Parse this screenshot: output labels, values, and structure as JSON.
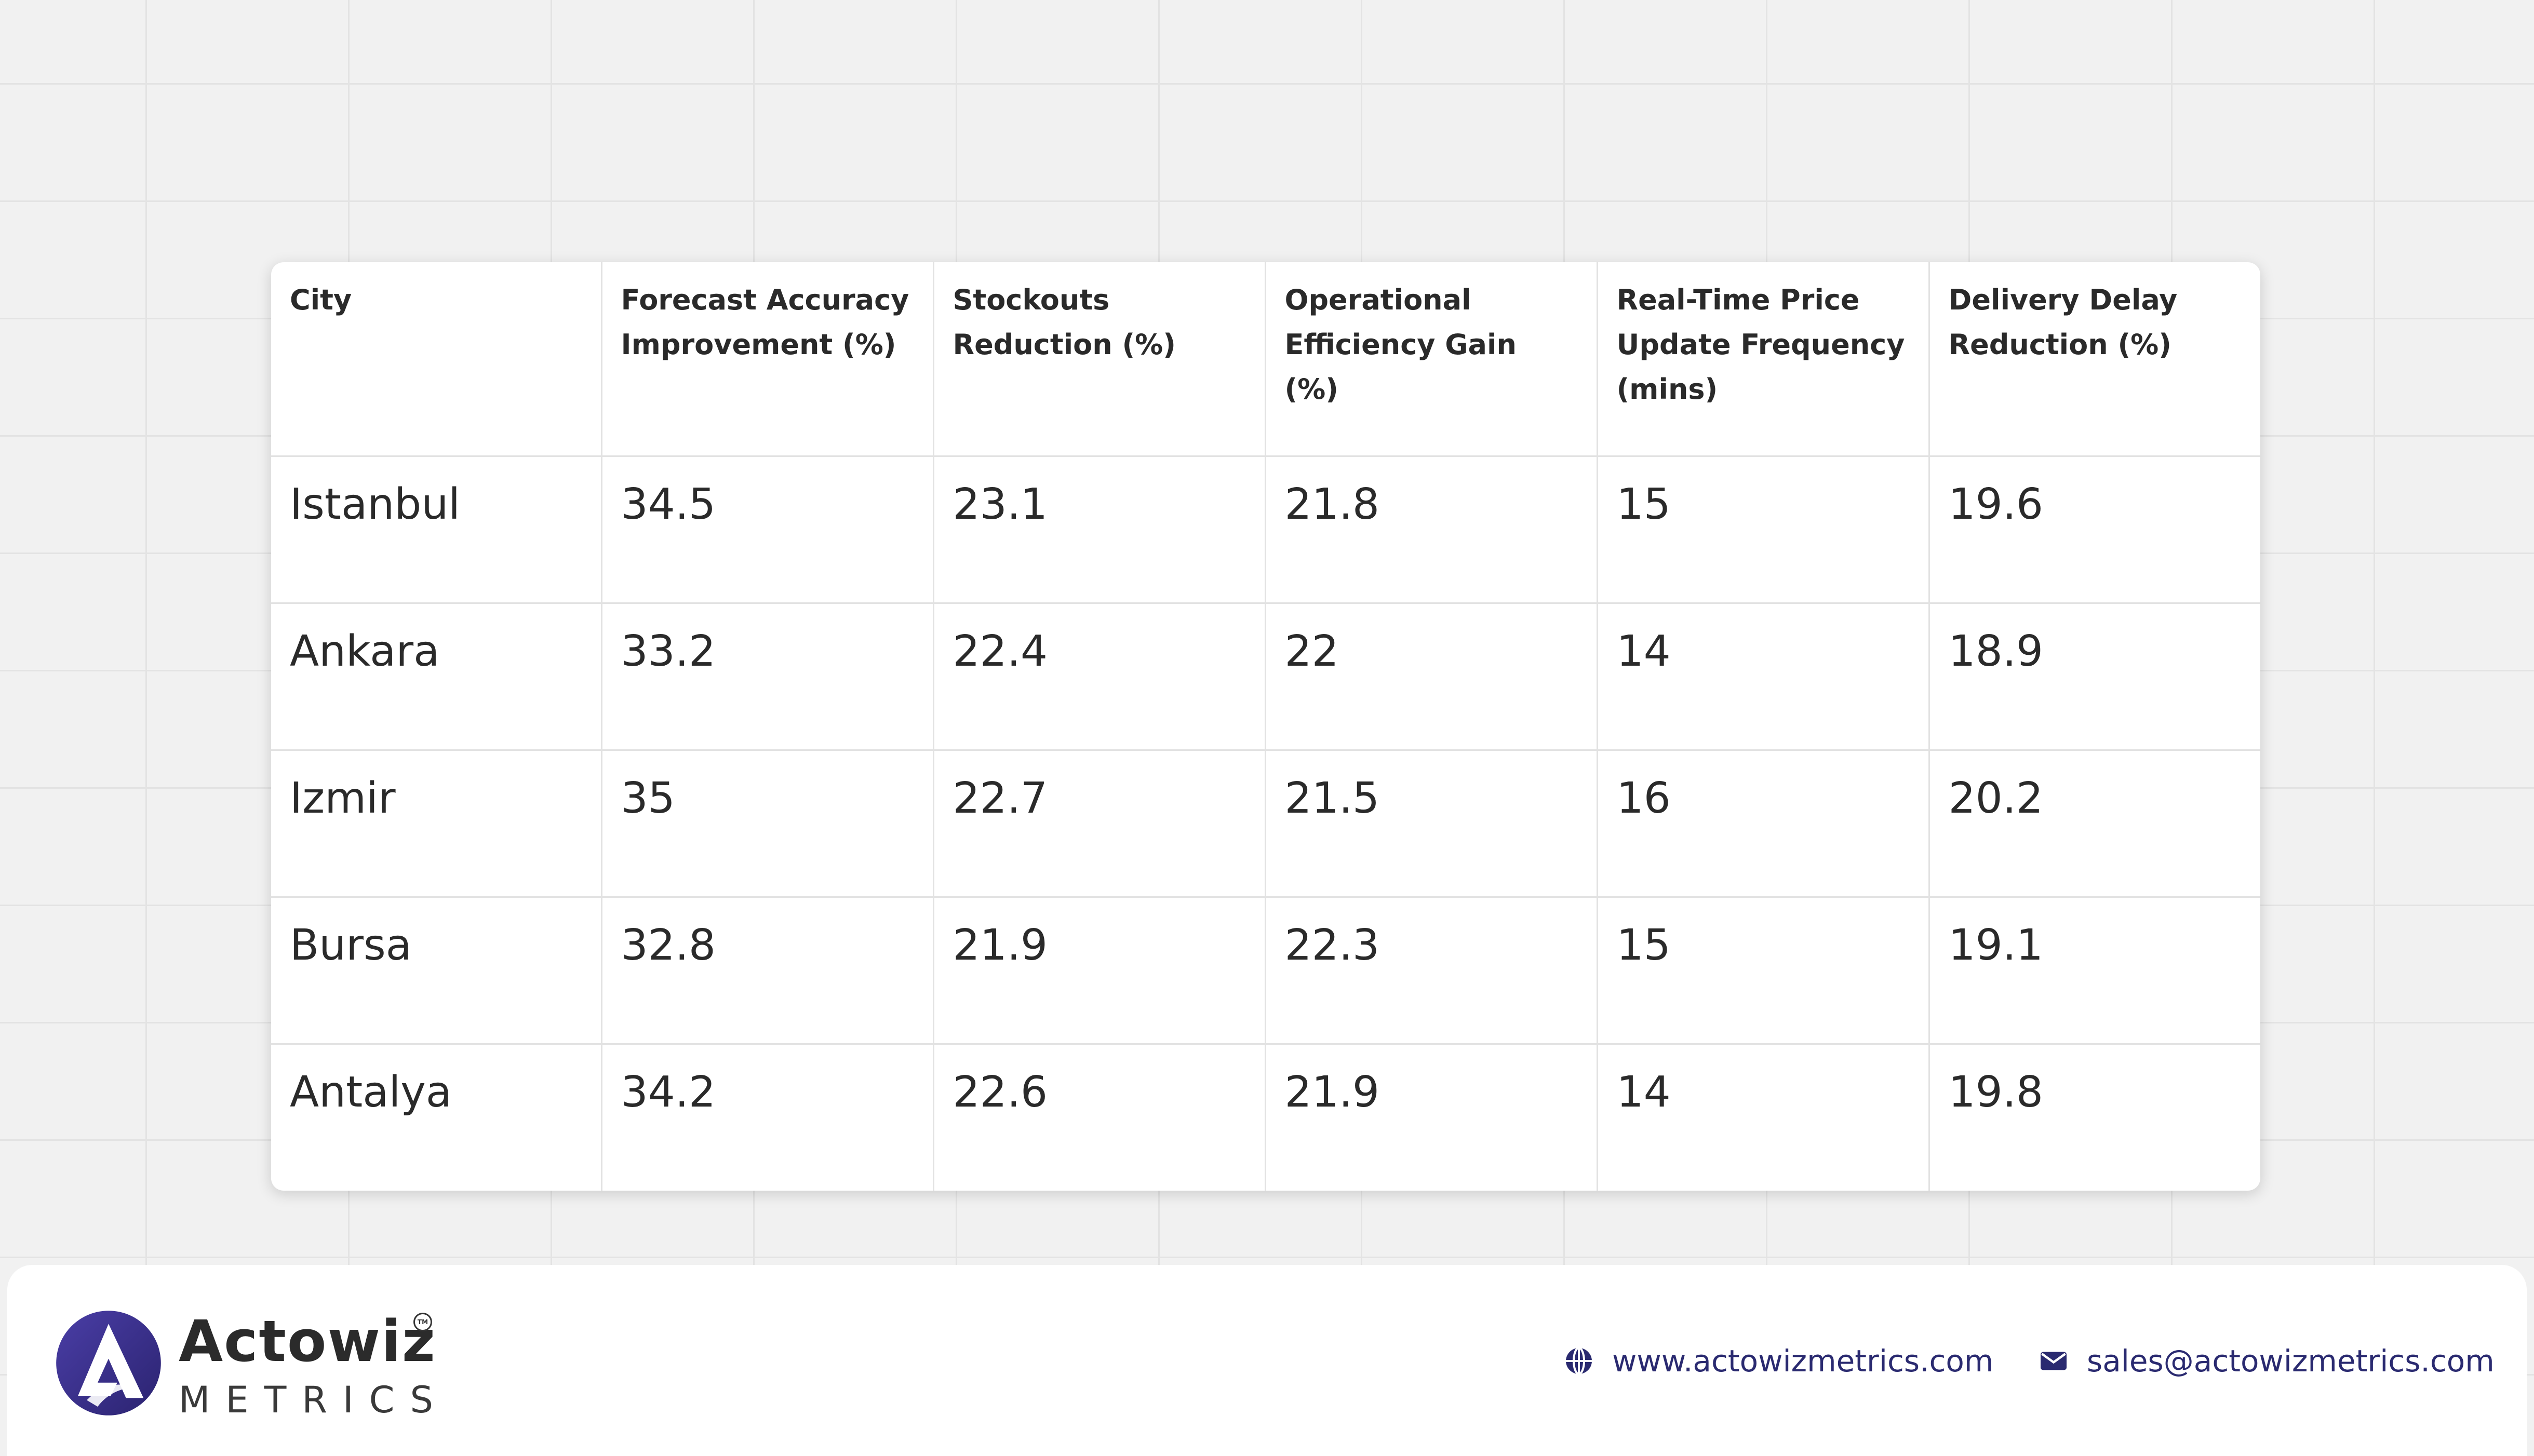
{
  "table": {
    "headers": [
      "City",
      "Forecast Accuracy Improvement (%)",
      "Stockouts Reduction (%)",
      "Operational Efficiency Gain (%)",
      "Real-Time Price Update Frequency (mins)",
      "Delivery Delay Reduction (%)"
    ],
    "rows": [
      [
        "Istanbul",
        "34.5",
        "23.1",
        "21.8",
        "15",
        "19.6"
      ],
      [
        "Ankara",
        "33.2",
        "22.4",
        "22",
        "14",
        "18.9"
      ],
      [
        "Izmir",
        "35",
        "22.7",
        "21.5",
        "16",
        "20.2"
      ],
      [
        "Bursa",
        "32.8",
        "21.9",
        "22.3",
        "15",
        "19.1"
      ],
      [
        "Antalya",
        "34.2",
        "22.6",
        "21.9",
        "14",
        "19.8"
      ]
    ]
  },
  "footer": {
    "logo": {
      "name": "Actowiz",
      "subtitle": "METRICS",
      "trademark": "TM",
      "brand_color": "#3b2f8c"
    },
    "website": "www.actowizmetrics.com",
    "email": "sales@actowizmetrics.com",
    "icons": {
      "website": "globe-icon",
      "email": "mail-icon"
    },
    "accent_color": "#2a2a70"
  }
}
